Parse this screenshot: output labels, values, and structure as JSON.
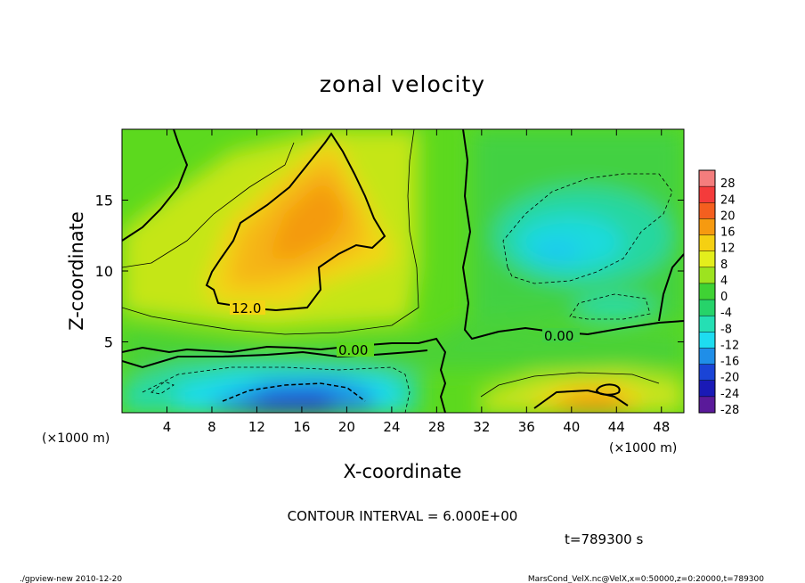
{
  "chart_data": {
    "type": "heatmap",
    "title": "zonal velocity",
    "xlabel": "X-coordinate",
    "ylabel": "Z-coordinate",
    "x_unit_label": "(×1000 m)",
    "x_ticks": [
      4,
      8,
      12,
      16,
      20,
      24,
      28,
      32,
      36,
      40,
      44,
      48
    ],
    "y_ticks": [
      5,
      10,
      15
    ],
    "xlim": [
      0,
      50
    ],
    "ylim": [
      0,
      20
    ],
    "contour_interval_text": "CONTOUR INTERVAL = 6.000E+00",
    "time_text": "t=789300 s",
    "contour_labels": [
      "12.0",
      "0.00",
      "0.00"
    ],
    "colorbar": {
      "levels": [
        "28",
        "24",
        "20",
        "16",
        "12",
        "8",
        "4",
        "0",
        "-4",
        "-8",
        "-12",
        "-16",
        "-20",
        "-24",
        "-28"
      ],
      "colors": [
        "#f47d7d",
        "#f43b3b",
        "#f45f1f",
        "#f69a10",
        "#f5d012",
        "#e3ee1c",
        "#9de31f",
        "#3fd234",
        "#26d36a",
        "#25dfb4",
        "#1edcf0",
        "#1f8ee8",
        "#1a44d6",
        "#1a1ab6",
        "#5a1a9a"
      ]
    },
    "regions": [
      {
        "name": "upper-left positive maximum",
        "value_range": [
          12,
          20
        ]
      },
      {
        "name": "upper-right negative minimum",
        "value_range": [
          -16,
          -10
        ]
      },
      {
        "name": "lower-left negative jet",
        "value_range": [
          -22,
          -12
        ]
      },
      {
        "name": "lower-right positive core",
        "value_range": [
          12,
          18
        ]
      }
    ]
  },
  "footer": {
    "left": "./gpview-new 2010-12-20",
    "right": "MarsCond_VelX.nc@VelX,x=0:50000,z=0:20000,t=789300"
  }
}
